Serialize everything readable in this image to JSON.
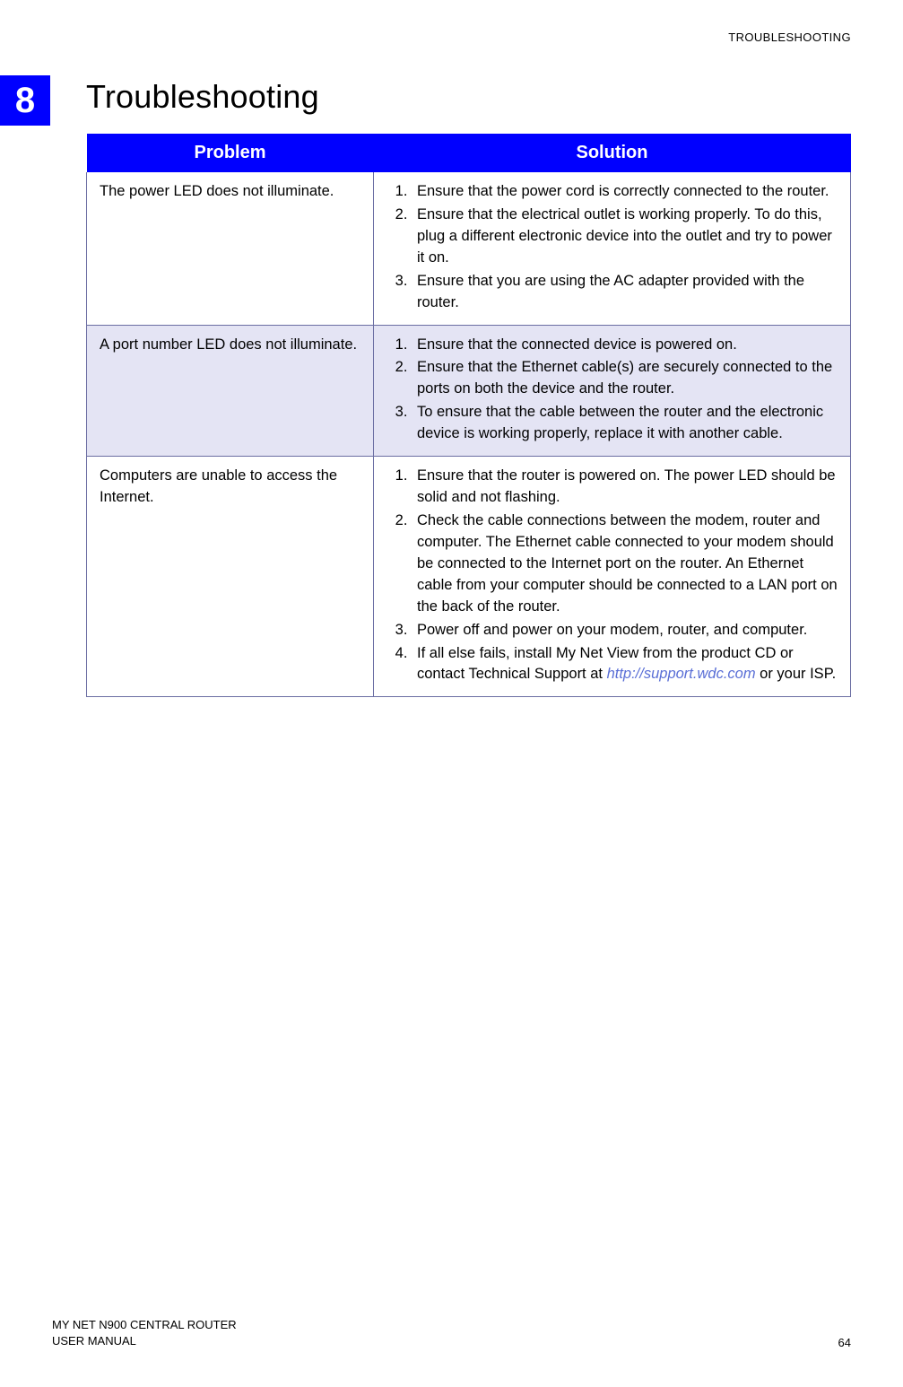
{
  "running_head": "TROUBLESHOOTING",
  "chapter_tab": "8",
  "heading": "Troubleshooting",
  "colors": {
    "header_bg": "#0000ff",
    "header_fg": "#ffffff",
    "border": "#6b6ea3",
    "alt_row_bg": "#e4e4f4",
    "link": "#5a6fd6"
  },
  "table": {
    "columns": [
      "Problem",
      "Solution"
    ],
    "rows": [
      {
        "problem": "The power LED does not illuminate.",
        "solution": [
          "Ensure that the power cord is correctly connected to the router.",
          "Ensure that the electrical outlet is working properly. To do this, plug a different electronic device into the outlet and try to power it on.",
          "Ensure that you are using the AC adapter provided with the router."
        ]
      },
      {
        "problem": "A port number LED does not illuminate.",
        "solution": [
          "Ensure that the connected device is powered on.",
          "Ensure that the Ethernet cable(s) are securely connected to the ports on both the device and the router.",
          "To ensure that the cable between the router and the electronic device is working properly, replace it with another cable."
        ]
      },
      {
        "problem": "Computers are unable to access the Internet.",
        "solution": [
          "Ensure that the router is powered on. The power LED should be solid and not flashing.",
          "Check the cable connections between the modem, router and computer. The Ethernet cable connected to your modem should be connected to the Internet port on the router. An Ethernet cable from your computer should be connected to a LAN port on the back of the router.",
          "Power off and power on your modem, router, and computer.",
          {
            "pre": "If all else fails, install My Net View from the product CD or contact Technical Support at ",
            "link": "http://support.wdc.com",
            "post": " or your ISP."
          }
        ]
      }
    ]
  },
  "footer": {
    "line1": "MY NET N900 CENTRAL ROUTER",
    "line2": "USER MANUAL",
    "page": "64"
  }
}
